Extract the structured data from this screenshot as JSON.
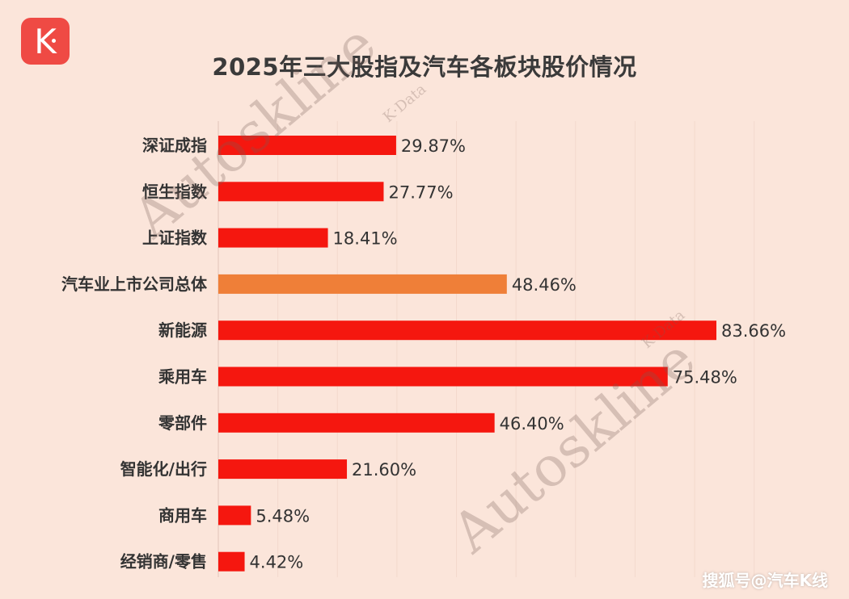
{
  "logo": {
    "letter": "K"
  },
  "chart_data": {
    "type": "bar",
    "orientation": "horizontal",
    "title": "2025年三大股指及汽车各板块股价情况",
    "categories": [
      "深证成指",
      "恒生指数",
      "上证指数",
      "汽车业上市公司总体",
      "新能源",
      "乘用车",
      "零部件",
      "智能化/出行",
      "商用车",
      "经销商/零售"
    ],
    "values": [
      29.87,
      27.77,
      18.41,
      48.46,
      83.66,
      75.48,
      46.4,
      21.6,
      5.48,
      4.42
    ],
    "value_labels": [
      "29.87%",
      "27.77%",
      "18.41%",
      "48.46%",
      "83.66%",
      "75.48%",
      "46.40%",
      "21.60%",
      "5.48%",
      "4.42%"
    ],
    "unit": "%",
    "highlight_index": 3,
    "colors": {
      "default": "#f5170f",
      "highlight": "#ef7f38"
    },
    "xlim": [
      0,
      90
    ],
    "grid": true
  },
  "watermarks": {
    "main": "Autoskline",
    "sub": "K·Data"
  },
  "footer": {
    "text": "搜狐号@汽车K线"
  }
}
